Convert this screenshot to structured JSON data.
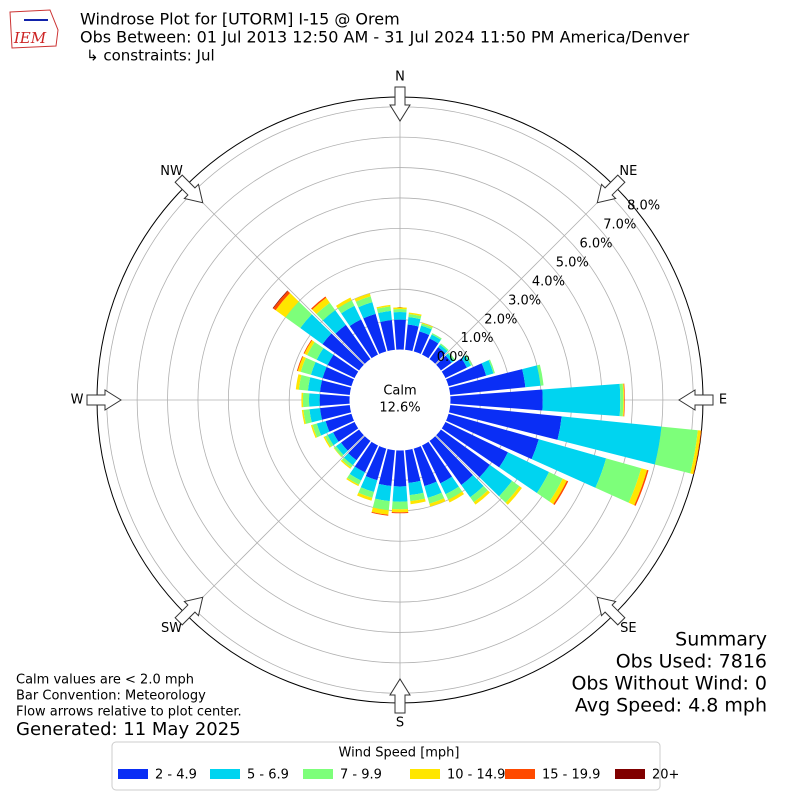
{
  "header": {
    "logo": "IEM",
    "title_lines": [
      "Windrose Plot for [UTORM] I-15 @ Orem",
      "Obs Between: 01 Jul 2013 12:50 AM - 31 Jul 2024 11:50 PM America/Denver",
      "↳ constraints: Jul"
    ]
  },
  "chart_data": {
    "type": "windrose",
    "x": [
      0,
      10,
      20,
      30,
      40,
      50,
      60,
      70,
      80,
      90,
      100,
      110,
      120,
      130,
      140,
      150,
      160,
      170,
      180,
      190,
      200,
      210,
      220,
      230,
      240,
      250,
      260,
      270,
      280,
      290,
      300,
      310,
      320,
      330,
      340,
      350
    ],
    "xticks": [
      {
        "value": 0,
        "label": "N"
      },
      {
        "value": 45,
        "label": "NE"
      },
      {
        "value": 90,
        "label": "E"
      },
      {
        "value": 135,
        "label": "SE"
      },
      {
        "value": 180,
        "label": "S"
      },
      {
        "value": 225,
        "label": "SW"
      },
      {
        "value": 270,
        "label": "W"
      },
      {
        "value": 315,
        "label": "NW"
      }
    ],
    "ylim": [
      0,
      8.32
    ],
    "yticks": [
      {
        "value": 0,
        "label": "0.0%"
      },
      {
        "value": 1,
        "label": "1.0%"
      },
      {
        "value": 2,
        "label": "2.0%"
      },
      {
        "value": 3,
        "label": "3.0%"
      },
      {
        "value": 4,
        "label": "4.0%"
      },
      {
        "value": 5,
        "label": "5.0%"
      },
      {
        "value": 6,
        "label": "6.0%"
      },
      {
        "value": 7,
        "label": "7.0%"
      },
      {
        "value": 8,
        "label": "8.0%"
      }
    ],
    "calm_label": "Calm",
    "calm_value": 12.6,
    "calm_value_label": "12.6%",
    "legend_title": "Wind Speed [mph]",
    "series": [
      {
        "name": "2 - 4.9",
        "color": "#0a2ef5",
        "values": [
          1.0,
          0.85,
          0.7,
          0.6,
          0.5,
          0.45,
          0.8,
          1.3,
          2.5,
          3.05,
          3.7,
          3.1,
          2.3,
          2.0,
          1.8,
          1.4,
          1.3,
          1.1,
          1.2,
          1.2,
          1.1,
          1.0,
          0.8,
          0.75,
          0.8,
          0.9,
          1.0,
          1.0,
          1.0,
          1.0,
          1.0,
          1.5,
          1.4,
          1.3,
          1.3,
          1.0
        ]
      },
      {
        "name": "5 - 6.9",
        "color": "#00d4f0",
        "values": [
          0.25,
          0.25,
          0.2,
          0.15,
          0.1,
          0.1,
          0.15,
          0.25,
          0.5,
          2.55,
          3.3,
          2.3,
          1.5,
          0.9,
          0.5,
          0.4,
          0.4,
          0.4,
          0.5,
          0.5,
          0.4,
          0.3,
          0.2,
          0.2,
          0.2,
          0.3,
          0.35,
          0.35,
          0.4,
          0.4,
          0.4,
          0.9,
          0.6,
          0.5,
          0.4,
          0.3
        ]
      },
      {
        "name": "7 - 9.9",
        "color": "#7dff7a",
        "values": [
          0.1,
          0.1,
          0.07,
          0.05,
          0.05,
          0.05,
          0.05,
          0.05,
          0.1,
          0.1,
          1.2,
          1.2,
          0.5,
          0.3,
          0.2,
          0.2,
          0.2,
          0.2,
          0.25,
          0.3,
          0.2,
          0.15,
          0.1,
          0.08,
          0.1,
          0.15,
          0.2,
          0.2,
          0.3,
          0.35,
          0.35,
          0.6,
          0.3,
          0.2,
          0.2,
          0.15
        ]
      },
      {
        "name": "10 - 14.9",
        "color": "#ffe600",
        "values": [
          0.05,
          0.05,
          0.03,
          0,
          0,
          0,
          0,
          0,
          0,
          0.03,
          0.1,
          0.2,
          0.15,
          0.1,
          0.1,
          0.1,
          0.1,
          0.1,
          0.1,
          0.15,
          0.1,
          0.05,
          0.05,
          0.02,
          0.05,
          0.05,
          0.05,
          0.05,
          0.1,
          0.1,
          0.1,
          0.4,
          0.2,
          0.1,
          0.1,
          0.05
        ]
      },
      {
        "name": "15 - 19.9",
        "color": "#ff4a00",
        "values": [
          0,
          0,
          0,
          0,
          0,
          0,
          0,
          0,
          0,
          0.02,
          0.02,
          0.05,
          0.05,
          0,
          0,
          0,
          0,
          0,
          0.03,
          0.03,
          0,
          0,
          0,
          0,
          0,
          0,
          0,
          0,
          0,
          0.03,
          0.03,
          0.1,
          0.05,
          0,
          0,
          0
        ]
      },
      {
        "name": "20+",
        "color": "#800000",
        "values": [
          0,
          0,
          0,
          0,
          0,
          0,
          0,
          0,
          0,
          0,
          0,
          0,
          0,
          0,
          0,
          0,
          0,
          0,
          0,
          0,
          0,
          0,
          0,
          0,
          0,
          0,
          0,
          0,
          0,
          0,
          0,
          0.02,
          0,
          0,
          0,
          0
        ]
      }
    ]
  },
  "notes": [
    "Calm values are < 2.0 mph",
    "Bar Convention: Meteorology",
    "Flow arrows relative to plot center."
  ],
  "generated": "Generated: 11 May 2025",
  "summary": [
    "Summary",
    "Obs Used: 7816",
    "Obs Without Wind: 0",
    "Avg Speed: 4.8 mph"
  ]
}
